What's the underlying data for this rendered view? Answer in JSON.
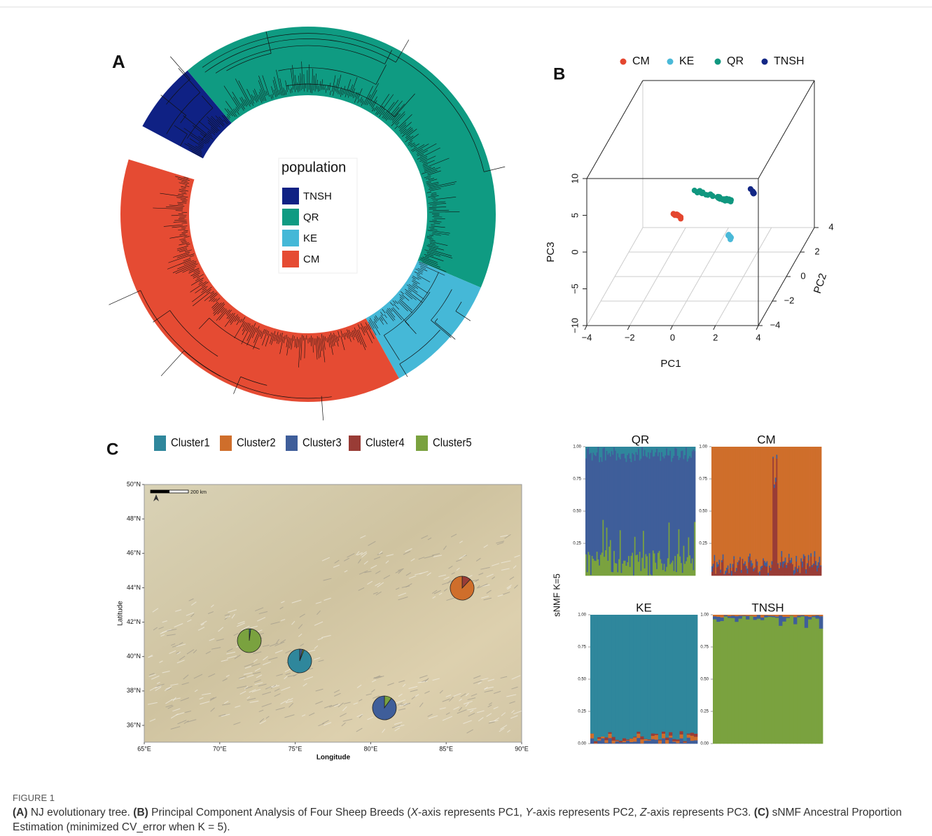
{
  "panel_a": {
    "label": "A",
    "legend_title": "population",
    "legend": [
      {
        "name": "TNSH",
        "color": "#0f2184"
      },
      {
        "name": "QR",
        "color": "#0f9b82"
      },
      {
        "name": "KE",
        "color": "#45b8d7"
      },
      {
        "name": "CM",
        "color": "#e54b33"
      }
    ]
  },
  "panel_b": {
    "label": "B",
    "legend": [
      {
        "name": "CM",
        "color": "#e4462f"
      },
      {
        "name": "KE",
        "color": "#4ab9d8"
      },
      {
        "name": "QR",
        "color": "#10977f"
      },
      {
        "name": "TNSH",
        "color": "#132785"
      }
    ],
    "x_label": "PC1",
    "y_label": "PC2",
    "z_label": "PC3",
    "x_ticks": [
      "−4",
      "−2",
      "0",
      "2",
      "4"
    ],
    "y_ticks": [
      "−4",
      "−2",
      "0",
      "2",
      "4"
    ],
    "z_ticks": [
      "−10",
      "−5",
      "0",
      "5",
      "10"
    ]
  },
  "panel_c": {
    "label": "C",
    "legend": [
      {
        "name": "Cluster1",
        "color": "#2f879c"
      },
      {
        "name": "Cluster2",
        "color": "#cf6e2b"
      },
      {
        "name": "Cluster3",
        "color": "#3f5e9a"
      },
      {
        "name": "Cluster4",
        "color": "#993c36"
      },
      {
        "name": "Cluster5",
        "color": "#7aa23f"
      }
    ],
    "map": {
      "x_label": "Longitude",
      "y_label": "Latitude",
      "scale": "200 km",
      "lat_ticks": [
        "50°N",
        "48°N",
        "46°N",
        "44°N",
        "42°N",
        "40°N",
        "38°N",
        "36°N"
      ],
      "lon_ticks": [
        "65°E",
        "70°E",
        "75°E",
        "80°E",
        "85°E",
        "90°E"
      ]
    },
    "structure": {
      "y_label": "sNMF K=5",
      "ticks": [
        "0.00",
        "0.25",
        "0.50",
        "0.75",
        "1.00"
      ],
      "panels": [
        "QR",
        "CM",
        "KE",
        "TNSH"
      ]
    }
  },
  "caption": {
    "figure_label": "FIGURE 1",
    "segments": [
      "(A)",
      " NJ evolutionary tree. ",
      "(B)",
      " Principal Component Analysis of Four Sheep Breeds (",
      "X",
      "-axis represents PC1, ",
      "Y",
      "-axis represents PC2, ",
      "Z",
      "-axis represents PC3. ",
      "(C)",
      " sNMF Ancestral Proportion Estimation (minimized CV_error when K = 5)."
    ]
  }
}
